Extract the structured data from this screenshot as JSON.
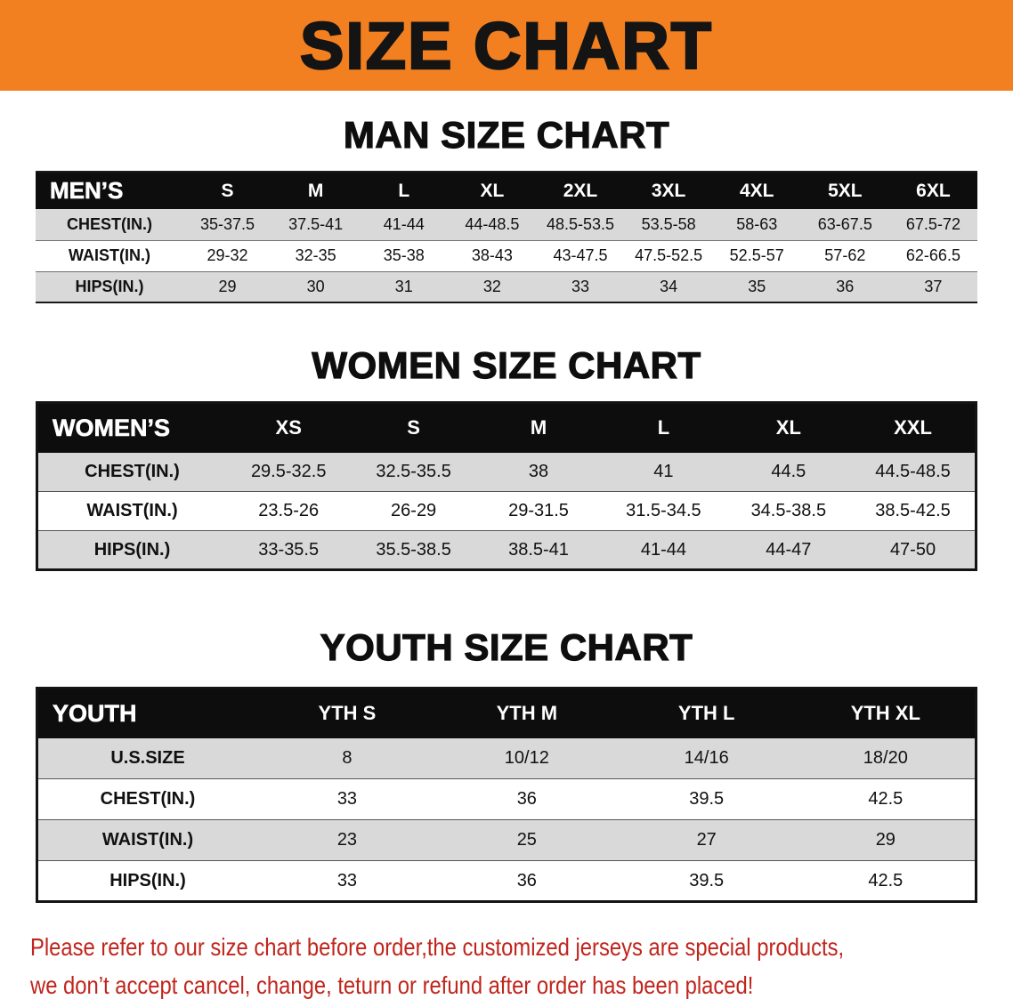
{
  "banner": {
    "title": "SIZE CHART",
    "bg_color": "#f28021",
    "text_color": "#141414"
  },
  "chart_data": [
    {
      "type": "table",
      "title": "MAN SIZE CHART",
      "corner_label": "MEN’S",
      "columns": [
        "S",
        "M",
        "L",
        "XL",
        "2XL",
        "3XL",
        "4XL",
        "5XL",
        "6XL"
      ],
      "rows": [
        {
          "label": "CHEST(IN.)",
          "values": [
            "35-37.5",
            "37.5-41",
            "41-44",
            "44-48.5",
            "48.5-53.5",
            "53.5-58",
            "58-63",
            "63-67.5",
            "67.5-72"
          ]
        },
        {
          "label": "WAIST(IN.)",
          "values": [
            "29-32",
            "32-35",
            "35-38",
            "38-43",
            "43-47.5",
            "47.5-52.5",
            "52.5-57",
            "57-62",
            "62-66.5"
          ]
        },
        {
          "label": "HIPS(IN.)",
          "values": [
            "29",
            "30",
            "31",
            "32",
            "33",
            "34",
            "35",
            "36",
            "37"
          ]
        }
      ]
    },
    {
      "type": "table",
      "title": "WOMEN SIZE CHART",
      "corner_label": "WOMEN’S",
      "columns": [
        "XS",
        "S",
        "M",
        "L",
        "XL",
        "XXL"
      ],
      "rows": [
        {
          "label": "CHEST(IN.)",
          "values": [
            "29.5-32.5",
            "32.5-35.5",
            "38",
            "41",
            "44.5",
            "44.5-48.5"
          ]
        },
        {
          "label": "WAIST(IN.)",
          "values": [
            "23.5-26",
            "26-29",
            "29-31.5",
            "31.5-34.5",
            "34.5-38.5",
            "38.5-42.5"
          ]
        },
        {
          "label": "HIPS(IN.)",
          "values": [
            "33-35.5",
            "35.5-38.5",
            "38.5-41",
            "41-44",
            "44-47",
            "47-50"
          ]
        }
      ]
    },
    {
      "type": "table",
      "title": "YOUTH SIZE CHART",
      "corner_label": "YOUTH",
      "columns": [
        "YTH S",
        "YTH M",
        "YTH L",
        "YTH XL"
      ],
      "rows": [
        {
          "label": "U.S.SIZE",
          "values": [
            "8",
            "10/12",
            "14/16",
            "18/20"
          ]
        },
        {
          "label": "CHEST(IN.)",
          "values": [
            "33",
            "36",
            "39.5",
            "42.5"
          ]
        },
        {
          "label": "WAIST(IN.)",
          "values": [
            "23",
            "25",
            "27",
            "29"
          ]
        },
        {
          "label": "HIPS(IN.)",
          "values": [
            "33",
            "36",
            "39.5",
            "42.5"
          ]
        }
      ]
    }
  ],
  "footer": {
    "line1": "Please refer to our size chart before order,the customized jerseys are special products,",
    "line2": "we don’t accept cancel, change, teturn or refund after order has been placed!",
    "text_color": "#c0251c"
  }
}
